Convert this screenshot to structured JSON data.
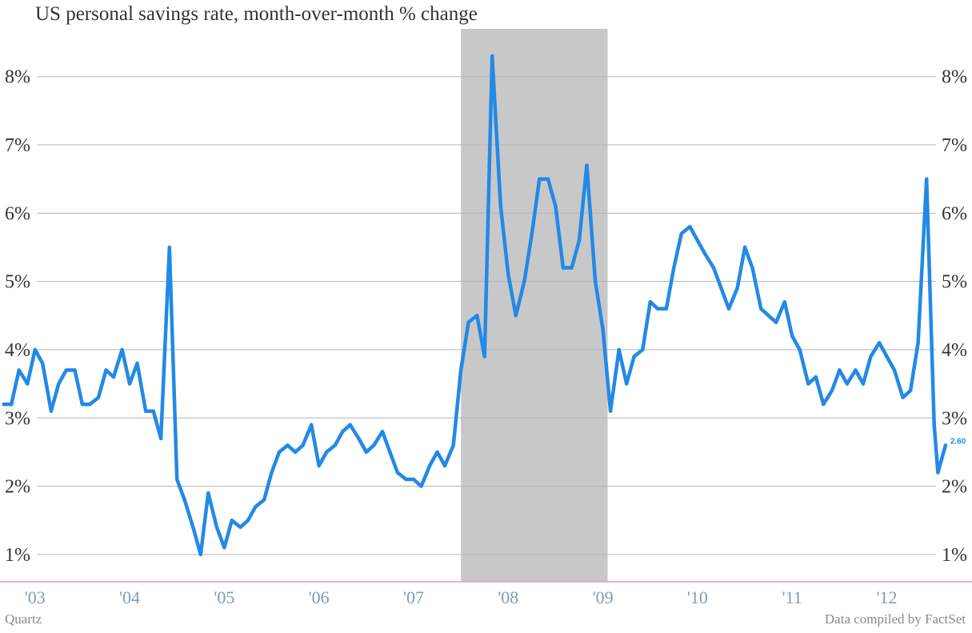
{
  "title": "US personal savings rate, month-over-month % change",
  "footer": {
    "left": "Quartz",
    "right": "Data compiled by FactSet"
  },
  "colors": {
    "line": "#2389e6",
    "recession_shade": "#c8c8c8",
    "grid": "#b3b3b3",
    "baseline": "#e89ad0",
    "xtick_text": "#7f9bb8"
  },
  "chart_data": {
    "type": "line",
    "title": "US personal savings rate, month-over-month % change",
    "xlabel": "",
    "ylabel": "",
    "ylim": [
      0.6,
      8.7
    ],
    "grid": true,
    "y_ticks": [
      1,
      2,
      3,
      4,
      5,
      6,
      7,
      8
    ],
    "y_tick_labels": [
      "1%",
      "2%",
      "3%",
      "4%",
      "5%",
      "6%",
      "7%",
      "8%"
    ],
    "y_tick_labels_right": [
      "1%",
      "2%",
      "3%",
      "4%",
      "5%",
      "6%",
      "7%",
      "8%"
    ],
    "x_ticks": [
      2003,
      2004,
      2005,
      2006,
      2007,
      2008,
      2009,
      2010,
      2011,
      2012
    ],
    "x_tick_labels": [
      "'03",
      "'04",
      "'05",
      "'06",
      "'07",
      "'08",
      "'09",
      "'10",
      "'11",
      "'12"
    ],
    "xlim": [
      2002.63,
      2012.9
    ],
    "shaded_range": [
      2007.5,
      2009.05
    ],
    "series": [
      {
        "values": [
          [
            2002.67,
            3.2
          ],
          [
            2002.75,
            3.2
          ],
          [
            2002.83,
            3.7
          ],
          [
            2002.92,
            3.5
          ],
          [
            2003.0,
            4.0
          ],
          [
            2003.08,
            3.8
          ],
          [
            2003.17,
            3.1
          ],
          [
            2003.25,
            3.5
          ],
          [
            2003.33,
            3.7
          ],
          [
            2003.42,
            3.7
          ],
          [
            2003.5,
            3.2
          ],
          [
            2003.58,
            3.2
          ],
          [
            2003.67,
            3.3
          ],
          [
            2003.75,
            3.7
          ],
          [
            2003.83,
            3.6
          ],
          [
            2003.92,
            4.0
          ],
          [
            2004.0,
            3.5
          ],
          [
            2004.08,
            3.8
          ],
          [
            2004.17,
            3.1
          ],
          [
            2004.25,
            3.1
          ],
          [
            2004.33,
            2.7
          ],
          [
            2004.42,
            5.5
          ],
          [
            2004.5,
            2.1
          ],
          [
            2004.58,
            1.8
          ],
          [
            2004.67,
            1.4
          ],
          [
            2004.75,
            1.0
          ],
          [
            2004.83,
            1.9
          ],
          [
            2004.92,
            1.4
          ],
          [
            2005.0,
            1.1
          ],
          [
            2005.08,
            1.5
          ],
          [
            2005.17,
            1.4
          ],
          [
            2005.25,
            1.5
          ],
          [
            2005.33,
            1.7
          ],
          [
            2005.42,
            1.8
          ],
          [
            2005.5,
            2.2
          ],
          [
            2005.58,
            2.5
          ],
          [
            2005.67,
            2.6
          ],
          [
            2005.75,
            2.5
          ],
          [
            2005.83,
            2.6
          ],
          [
            2005.92,
            2.9
          ],
          [
            2006.0,
            2.3
          ],
          [
            2006.08,
            2.5
          ],
          [
            2006.17,
            2.6
          ],
          [
            2006.25,
            2.8
          ],
          [
            2006.33,
            2.9
          ],
          [
            2006.42,
            2.7
          ],
          [
            2006.5,
            2.5
          ],
          [
            2006.58,
            2.6
          ],
          [
            2006.67,
            2.8
          ],
          [
            2006.75,
            2.5
          ],
          [
            2006.83,
            2.2
          ],
          [
            2006.92,
            2.1
          ],
          [
            2007.0,
            2.1
          ],
          [
            2007.08,
            2.0
          ],
          [
            2007.17,
            2.3
          ],
          [
            2007.25,
            2.5
          ],
          [
            2007.33,
            2.3
          ],
          [
            2007.42,
            2.6
          ],
          [
            2007.5,
            3.7
          ],
          [
            2007.58,
            4.4
          ],
          [
            2007.67,
            4.5
          ],
          [
            2007.75,
            3.9
          ],
          [
            2007.83,
            8.3
          ],
          [
            2007.92,
            6.1
          ],
          [
            2008.0,
            5.1
          ],
          [
            2008.08,
            4.5
          ],
          [
            2008.17,
            5.0
          ],
          [
            2008.25,
            5.7
          ],
          [
            2008.33,
            6.5
          ],
          [
            2008.42,
            6.5
          ],
          [
            2008.5,
            6.1
          ],
          [
            2008.58,
            5.2
          ],
          [
            2008.67,
            5.2
          ],
          [
            2008.75,
            5.6
          ],
          [
            2008.83,
            6.7
          ],
          [
            2008.92,
            5.0
          ],
          [
            2009.0,
            4.3
          ],
          [
            2009.08,
            3.1
          ],
          [
            2009.17,
            4.0
          ],
          [
            2009.25,
            3.5
          ],
          [
            2009.33,
            3.9
          ],
          [
            2009.42,
            4.0
          ],
          [
            2009.5,
            4.7
          ],
          [
            2009.58,
            4.6
          ],
          [
            2009.67,
            4.6
          ],
          [
            2009.75,
            5.2
          ],
          [
            2009.83,
            5.7
          ],
          [
            2009.92,
            5.8
          ],
          [
            2010.0,
            5.6
          ],
          [
            2010.08,
            5.4
          ],
          [
            2010.17,
            5.2
          ],
          [
            2010.25,
            4.9
          ],
          [
            2010.33,
            4.6
          ],
          [
            2010.42,
            4.9
          ],
          [
            2010.5,
            5.5
          ],
          [
            2010.58,
            5.2
          ],
          [
            2010.67,
            4.6
          ],
          [
            2010.75,
            4.5
          ],
          [
            2010.83,
            4.4
          ],
          [
            2010.92,
            4.7
          ],
          [
            2011.0,
            4.2
          ],
          [
            2011.08,
            4.0
          ],
          [
            2011.17,
            3.5
          ],
          [
            2011.25,
            3.6
          ],
          [
            2011.33,
            3.2
          ],
          [
            2011.42,
            3.4
          ],
          [
            2011.5,
            3.7
          ],
          [
            2011.58,
            3.5
          ],
          [
            2011.67,
            3.7
          ],
          [
            2011.75,
            3.5
          ],
          [
            2011.83,
            3.9
          ],
          [
            2011.92,
            4.1
          ],
          [
            2012.0,
            3.9
          ],
          [
            2012.08,
            3.7
          ],
          [
            2012.17,
            3.3
          ],
          [
            2012.25,
            3.4
          ],
          [
            2012.33,
            4.1
          ],
          [
            2012.42,
            6.5
          ],
          [
            2012.5,
            2.9
          ],
          [
            2012.54,
            2.2
          ],
          [
            2012.62,
            2.6
          ]
        ]
      }
    ],
    "annotations": [
      {
        "text": "2.60",
        "x": 2012.62,
        "y": 2.6
      }
    ]
  }
}
